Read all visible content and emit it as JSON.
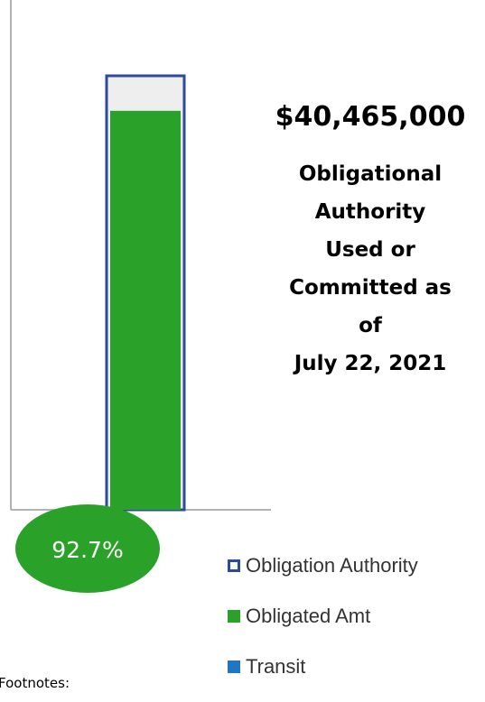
{
  "chart_data": {
    "type": "bar",
    "categories": [
      ""
    ],
    "series": [
      {
        "name": "Obligation Authority",
        "values": [
          100
        ],
        "color": "#2e4b9b",
        "style": "outline"
      },
      {
        "name": "Obligated Amt",
        "values": [
          92.7
        ],
        "color": "#2aa22a",
        "style": "fill"
      },
      {
        "name": "Transit",
        "values": [
          0
        ],
        "color": "#1f77c4",
        "style": "fill"
      }
    ],
    "ylim": [
      0,
      100
    ],
    "legend_position": "bottom-right",
    "grid": false,
    "data_label": "92.7%",
    "data_label_color": "#2aa22a"
  },
  "annotation": {
    "amount": "$40,465,000",
    "caption": "Obligational\nAuthority\nUsed or\nCommitted as\nof\nJuly 22, 2021"
  },
  "legend": {
    "items": [
      {
        "label": "Obligation Authority",
        "icon": "outline-square-icon",
        "color": "#2e4b9b"
      },
      {
        "label": "Obligated Amt",
        "icon": "filled-square-icon",
        "color": "#2aa22a"
      },
      {
        "label": "Transit",
        "icon": "filled-square-icon",
        "color": "#1f77c4"
      }
    ]
  },
  "footnote": "Footnotes:"
}
